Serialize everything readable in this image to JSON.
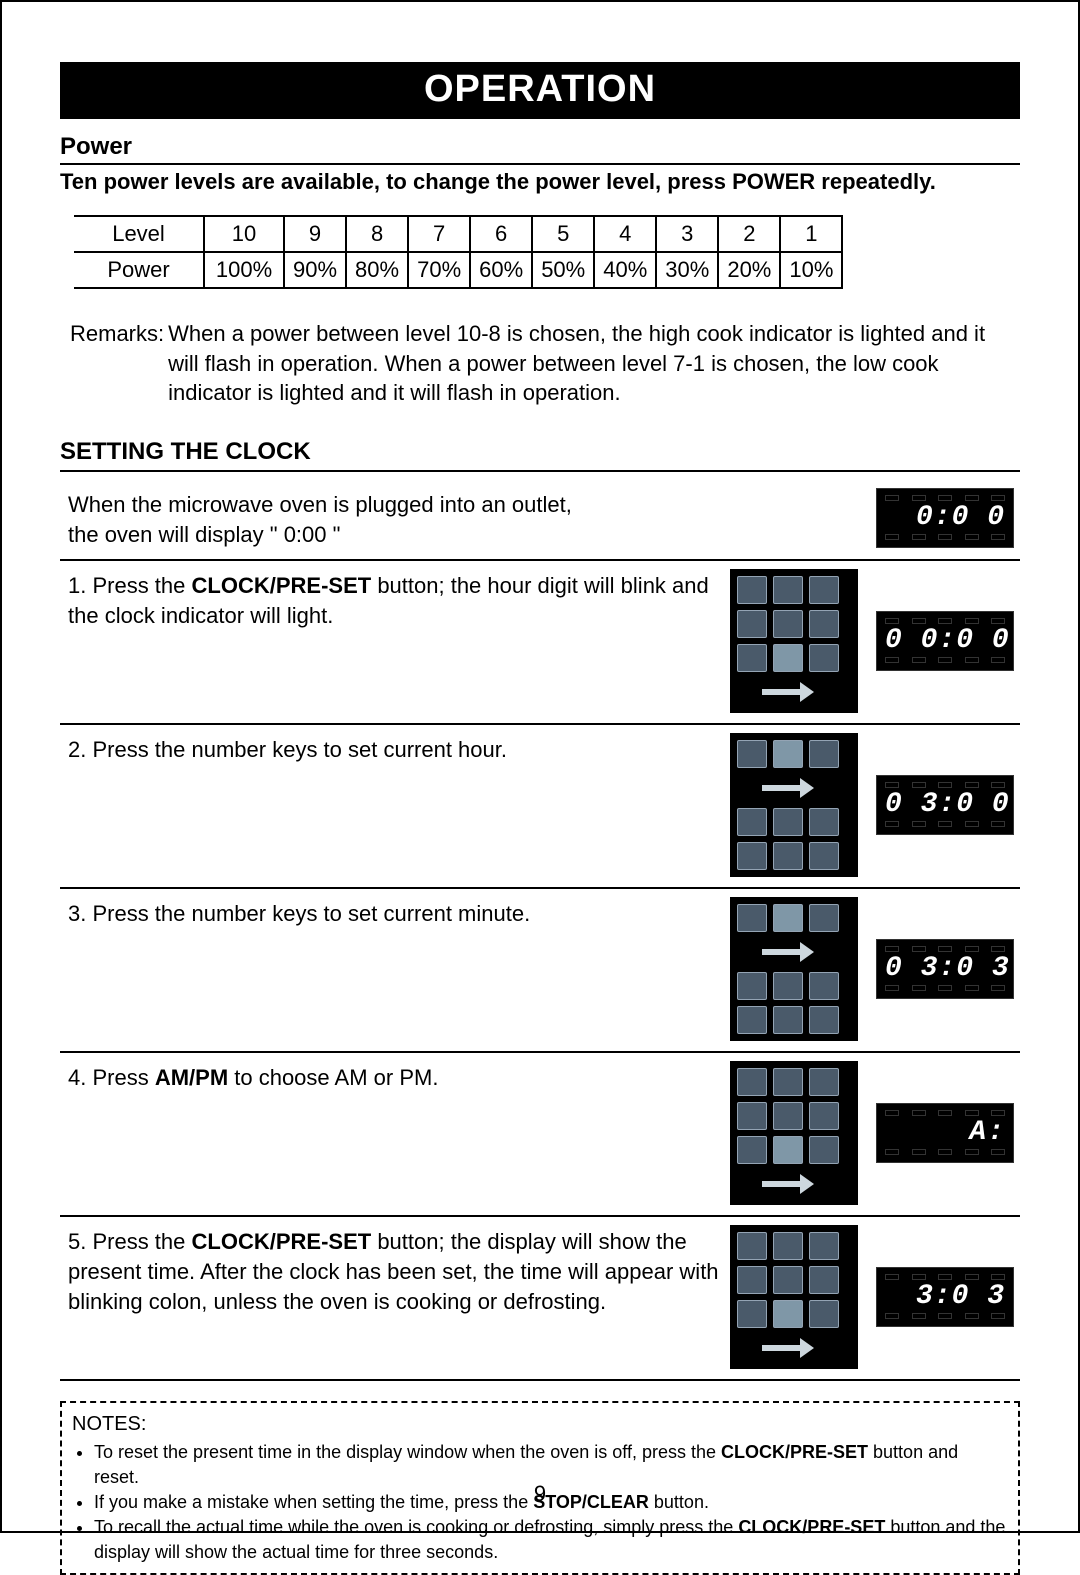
{
  "title": "OPERATION",
  "power": {
    "heading": "Power",
    "desc": "Ten power levels are available, to change the power level, press POWER repeatedly.",
    "row_labels": [
      "Level",
      "Power"
    ],
    "levels": [
      "10",
      "9",
      "8",
      "7",
      "6",
      "5",
      "4",
      "3",
      "2",
      "1"
    ],
    "percents": [
      "100%",
      "90%",
      "80%",
      "70%",
      "60%",
      "50%",
      "40%",
      "30%",
      "20%",
      "10%"
    ],
    "remarks_label": "Remarks: ",
    "remarks_body": "When a power between level 10-8 is chosen, the high cook indicator is lighted and it will flash in operation. When a power between level 7-1 is chosen, the low cook indicator is lighted and it will flash in operation."
  },
  "clock": {
    "heading": "SETTING THE CLOCK",
    "intro": {
      "line1": "When the microwave oven is plugged into an outlet,",
      "line2": "the oven will display \" 0:00 \"",
      "display": " 0:0 0"
    },
    "steps": [
      {
        "text_html": "1. Press the <b>CLOCK/PRE-SET</b> button; the hour digit will blink and the clock indicator will light.",
        "keypad_arrow_row": 4,
        "display": "0 0:0 0"
      },
      {
        "text_html": "2. Press the number keys to set current hour.",
        "keypad_arrow_row": 2,
        "display": "0 3:0 0"
      },
      {
        "text_html": "3. Press the number keys to set current minute.",
        "keypad_arrow_row": 2,
        "display": "0 3:0 3"
      },
      {
        "text_html": "4. Press <b>AM/PM</b> to choose AM or PM.",
        "keypad_arrow_row": 4,
        "display": " A:  "
      },
      {
        "text_html": "5. Press the <b>CLOCK/PRE-SET</b>  button; the display will show the present time. After the clock has been set, the time will appear with blinking colon, unless the oven is cooking or defrosting.",
        "keypad_arrow_row": 4,
        "display": " 3:0 3"
      }
    ]
  },
  "notes": {
    "title": "NOTES:",
    "items": [
      "To reset the present time in the display window when the oven is off, press the <b>CLOCK/PRE-SET</b> button and reset.",
      "If you make a mistake when setting the time, press the <b>STOP/CLEAR</b>  button.",
      "To recall the actual time while the oven is cooking or defrosting, simply press the <b>CLOCK/PRE-SET</b> button and the display will show the actual time for three seconds."
    ]
  },
  "page_number": "9",
  "colors": {
    "page_bg": "#ffffff",
    "text": "#000000",
    "titlebar_bg": "#000000",
    "titlebar_fg": "#ffffff",
    "keypad_bg": "#000000",
    "key_fill": "#4a5a6a",
    "key_lit": "#7f97a7",
    "key_border": "#94a4b4",
    "arrow_color": "#cdd7de",
    "lcd_bg": "#000000",
    "lcd_fg": "#ffffff",
    "border": "#000000"
  }
}
